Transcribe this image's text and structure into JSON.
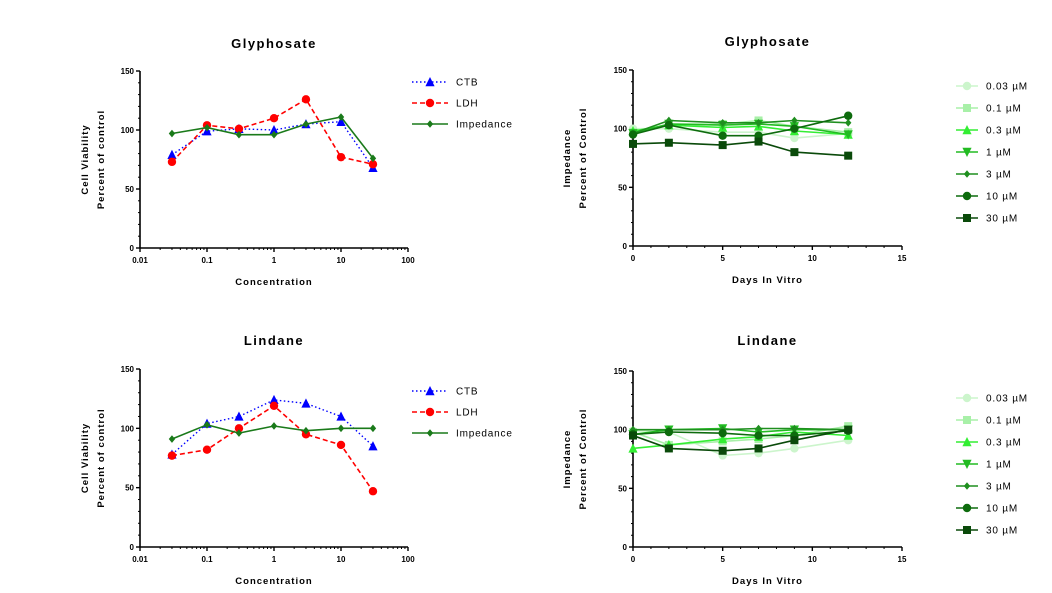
{
  "chart_data": [
    {
      "type": "line",
      "title": "Glyphosate",
      "xlabel": "Concentration",
      "ylabel": [
        "Cell Viability",
        "Percent of control"
      ],
      "xscale": "log",
      "xlim": [
        0.01,
        100
      ],
      "ylim": [
        0,
        150
      ],
      "xticks": [
        "0.01",
        "0.1",
        "1",
        "10",
        "100"
      ],
      "yticks": [
        "0",
        "50",
        "100",
        "150"
      ],
      "legend_position": "right",
      "series": [
        {
          "name": "CTB",
          "color": "#0000ff",
          "marker": "triangle-up",
          "line": "dotted",
          "x": [
            0.03,
            0.1,
            0.3,
            1,
            3,
            10,
            30
          ],
          "y": [
            79,
            99,
            101,
            100,
            105,
            107,
            68
          ]
        },
        {
          "name": "LDH",
          "color": "#ff0000",
          "marker": "circle",
          "line": "dashed",
          "x": [
            0.03,
            0.1,
            0.3,
            1,
            3,
            10,
            30
          ],
          "y": [
            73,
            104,
            101,
            110,
            126,
            77,
            71
          ]
        },
        {
          "name": "Impedance",
          "color": "#1a7a1a",
          "marker": "diamond",
          "line": "solid",
          "x": [
            0.03,
            0.1,
            0.3,
            1,
            3,
            10,
            30
          ],
          "y": [
            97,
            102,
            96,
            96,
            105,
            111,
            76
          ]
        }
      ]
    },
    {
      "type": "line",
      "title": "Glyphosate",
      "xlabel": "Days In Vitro",
      "ylabel": [
        "Impedance",
        "Percent of Control"
      ],
      "xscale": "linear",
      "xlim": [
        0,
        15
      ],
      "ylim": [
        0,
        150
      ],
      "xticks": [
        "0",
        "5",
        "10",
        "15"
      ],
      "yticks": [
        "0",
        "50",
        "100",
        "150"
      ],
      "legend_position": "right",
      "series": [
        {
          "name": "0.03 µM",
          "color": "#ccf5cc",
          "marker": "circle",
          "x": [
            0,
            2,
            5,
            7,
            9,
            12
          ],
          "y": [
            100,
            100,
            97,
            97,
            92,
            96
          ]
        },
        {
          "name": "0.1 µM",
          "color": "#a8f0a8",
          "marker": "square",
          "x": [
            0,
            2,
            5,
            7,
            9,
            12
          ],
          "y": [
            97,
            104,
            104,
            107,
            102,
            97
          ]
        },
        {
          "name": "0.3 µM",
          "color": "#33ee33",
          "marker": "triangle-up",
          "x": [
            0,
            2,
            5,
            7,
            9,
            12
          ],
          "y": [
            98,
            103,
            101,
            102,
            98,
            95
          ]
        },
        {
          "name": "1 µM",
          "color": "#22bb22",
          "marker": "triangle-down",
          "x": [
            0,
            2,
            5,
            7,
            9,
            12
          ],
          "y": [
            96,
            104,
            103,
            104,
            102,
            95
          ]
        },
        {
          "name": "3 µM",
          "color": "#1f8f1f",
          "marker": "diamond",
          "x": [
            0,
            2,
            5,
            7,
            9,
            12
          ],
          "y": [
            96,
            107,
            105,
            105,
            107,
            105
          ]
        },
        {
          "name": "10 µM",
          "color": "#0d6b0d",
          "marker": "circle",
          "x": [
            0,
            2,
            5,
            7,
            9,
            12
          ],
          "y": [
            95,
            103,
            94,
            94,
            100,
            111
          ]
        },
        {
          "name": "30 µM",
          "color": "#0a4a0a",
          "marker": "square",
          "x": [
            0,
            2,
            5,
            7,
            9,
            12
          ],
          "y": [
            87,
            88,
            86,
            89,
            80,
            77
          ]
        }
      ]
    },
    {
      "type": "line",
      "title": "Lindane",
      "xlabel": "Concentration",
      "ylabel": [
        "Cell Viability",
        "Percent of control"
      ],
      "xscale": "log",
      "xlim": [
        0.01,
        100
      ],
      "ylim": [
        0,
        150
      ],
      "xticks": [
        "0.01",
        "0.1",
        "1",
        "10",
        "100"
      ],
      "yticks": [
        "0",
        "50",
        "100",
        "150"
      ],
      "legend_position": "right",
      "series": [
        {
          "name": "CTB",
          "color": "#0000ff",
          "marker": "triangle-up",
          "line": "dotted",
          "x": [
            0.03,
            0.1,
            0.3,
            1,
            3,
            10,
            30
          ],
          "y": [
            78,
            104,
            110,
            124,
            121,
            110,
            85
          ]
        },
        {
          "name": "LDH",
          "color": "#ff0000",
          "marker": "circle",
          "line": "dashed",
          "x": [
            0.03,
            0.1,
            0.3,
            1,
            3,
            10,
            30
          ],
          "y": [
            77,
            82,
            100,
            119,
            95,
            86,
            47
          ]
        },
        {
          "name": "Impedance",
          "color": "#1a7a1a",
          "marker": "diamond",
          "line": "solid",
          "x": [
            0.03,
            0.1,
            0.3,
            1,
            3,
            10,
            30
          ],
          "y": [
            91,
            103,
            96,
            102,
            98,
            100,
            100
          ]
        }
      ]
    },
    {
      "type": "line",
      "title": "Lindane",
      "xlabel": "Days In Vitro",
      "ylabel": [
        "Impedance",
        "Percent of Control"
      ],
      "xscale": "linear",
      "xlim": [
        0,
        15
      ],
      "ylim": [
        0,
        150
      ],
      "xticks": [
        "0",
        "5",
        "10",
        "15"
      ],
      "yticks": [
        "0",
        "50",
        "100",
        "150"
      ],
      "legend_position": "right",
      "series": [
        {
          "name": "0.03 µM",
          "color": "#ccf5cc",
          "marker": "circle",
          "x": [
            0,
            2,
            5,
            7,
            9,
            12
          ],
          "y": [
            99,
            98,
            78,
            80,
            84,
            91
          ]
        },
        {
          "name": "0.1 µM",
          "color": "#a8f0a8",
          "marker": "square",
          "x": [
            0,
            2,
            5,
            7,
            9,
            12
          ],
          "y": [
            98,
            87,
            90,
            92,
            95,
            103
          ]
        },
        {
          "name": "0.3 µM",
          "color": "#33ee33",
          "marker": "triangle-up",
          "x": [
            0,
            2,
            5,
            7,
            9,
            12
          ],
          "y": [
            84,
            87,
            92,
            94,
            98,
            95
          ]
        },
        {
          "name": "1 µM",
          "color": "#22bb22",
          "marker": "triangle-down",
          "x": [
            0,
            2,
            5,
            7,
            9,
            12
          ],
          "y": [
            96,
            100,
            101,
            98,
            100,
            100
          ]
        },
        {
          "name": "3 µM",
          "color": "#1f8f1f",
          "marker": "diamond",
          "x": [
            0,
            2,
            5,
            7,
            9,
            12
          ],
          "y": [
            100,
            100,
            100,
            101,
            101,
            100
          ]
        },
        {
          "name": "10 µM",
          "color": "#0d6b0d",
          "marker": "circle",
          "x": [
            0,
            2,
            5,
            7,
            9,
            12
          ],
          "y": [
            96,
            98,
            97,
            95,
            95,
            99
          ]
        },
        {
          "name": "30 µM",
          "color": "#0a4a0a",
          "marker": "square",
          "x": [
            0,
            2,
            5,
            7,
            9,
            12
          ],
          "y": [
            95,
            84,
            82,
            84,
            91,
            100
          ]
        }
      ]
    }
  ]
}
